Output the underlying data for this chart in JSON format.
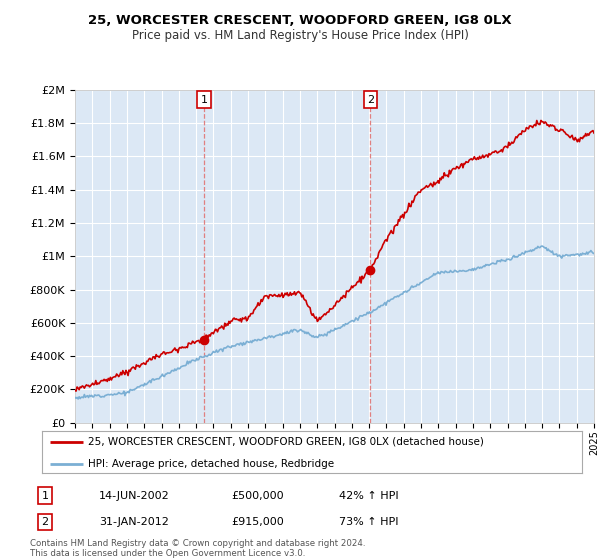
{
  "title": "25, WORCESTER CRESCENT, WOODFORD GREEN, IG8 0LX",
  "subtitle": "Price paid vs. HM Land Registry's House Price Index (HPI)",
  "legend_line1": "25, WORCESTER CRESCENT, WOODFORD GREEN, IG8 0LX (detached house)",
  "legend_line2": "HPI: Average price, detached house, Redbridge",
  "transaction1_date": "14-JUN-2002",
  "transaction1_price": 500000,
  "transaction1_hpi": "42% ↑ HPI",
  "transaction2_date": "31-JAN-2012",
  "transaction2_price": 915000,
  "transaction2_hpi": "73% ↑ HPI",
  "footer": "Contains HM Land Registry data © Crown copyright and database right 2024.\nThis data is licensed under the Open Government Licence v3.0.",
  "hpi_color": "#7bafd4",
  "sold_color": "#cc0000",
  "background_color": "#ffffff",
  "plot_bg_color": "#dce8f5",
  "grid_color": "#ffffff",
  "ylim": [
    0,
    2000000
  ],
  "yticks": [
    0,
    200000,
    400000,
    600000,
    800000,
    1000000,
    1200000,
    1400000,
    1600000,
    1800000,
    2000000
  ],
  "xlim_start": 1995,
  "xlim_end": 2025,
  "transaction1_x": 2002.45,
  "transaction2_x": 2012.08,
  "marker_color": "#cc0000",
  "vline_color": "#e08080"
}
